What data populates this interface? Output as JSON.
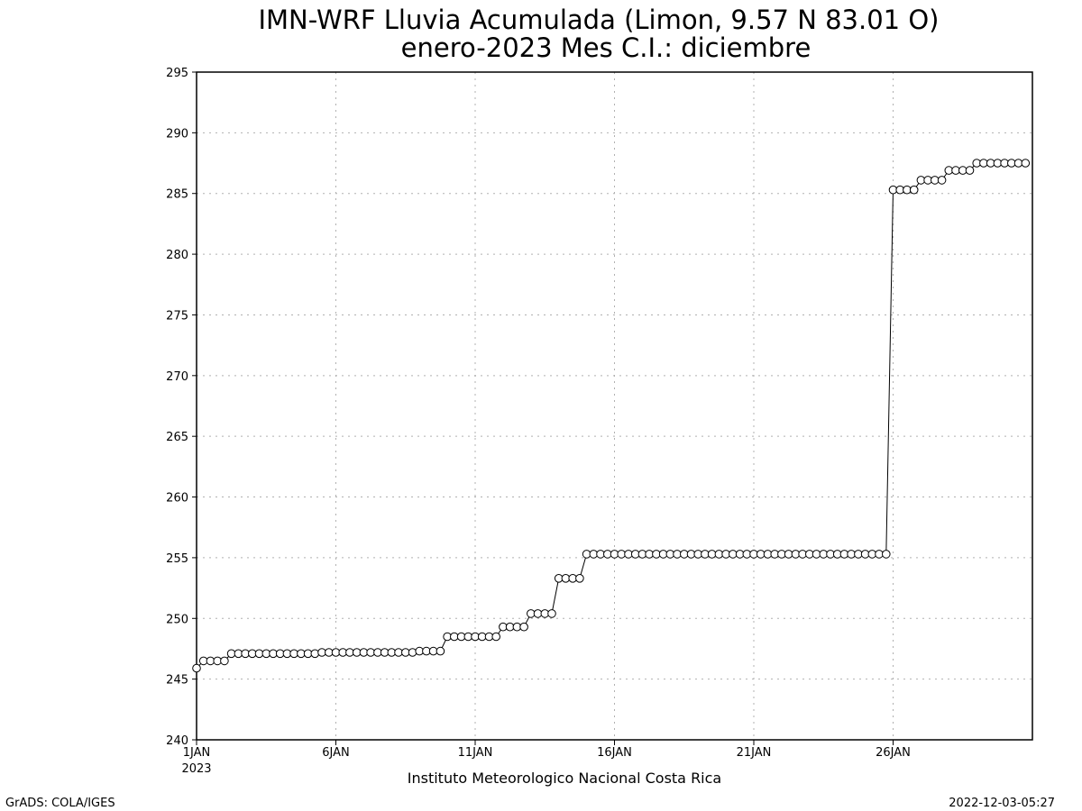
{
  "chart_data": {
    "type": "line",
    "title": "IMN-WRF  Lluvia Acumulada (Limon, 9.57  N 83.01  O)",
    "subtitle": "enero-2023 Mes C.I.: diciembre",
    "xlabel": "Instituto Meteorologico Nacional Costa Rica",
    "ylabel": "",
    "ylim": [
      240,
      295
    ],
    "xlim": [
      "2023-01-01 00:00",
      "2023-01-31 00:00"
    ],
    "yticks": [
      "240",
      "245",
      "250",
      "255",
      "260",
      "265",
      "270",
      "275",
      "280",
      "285",
      "290",
      "295"
    ],
    "xticks": [
      {
        "label": "1JAN",
        "sublabel": "2023"
      },
      {
        "label": "6JAN",
        "sublabel": ""
      },
      {
        "label": "11JAN",
        "sublabel": ""
      },
      {
        "label": "16JAN",
        "sublabel": ""
      },
      {
        "label": "21JAN",
        "sublabel": ""
      },
      {
        "label": "26JAN",
        "sublabel": ""
      }
    ],
    "grid": true,
    "marker": "open-circle",
    "line_color": "#000000",
    "series": [
      {
        "step_hours": 6,
        "values": [
          245.9,
          246.5,
          246.5,
          246.5,
          246.5,
          247.1,
          247.1,
          247.1,
          247.1,
          247.1,
          247.1,
          247.1,
          247.1,
          247.1,
          247.1,
          247.1,
          247.1,
          247.1,
          247.2,
          247.2,
          247.2,
          247.2,
          247.2,
          247.2,
          247.2,
          247.2,
          247.2,
          247.2,
          247.2,
          247.2,
          247.2,
          247.2,
          247.3,
          247.3,
          247.3,
          247.3,
          248.5,
          248.5,
          248.5,
          248.5,
          248.5,
          248.5,
          248.5,
          248.5,
          249.3,
          249.3,
          249.3,
          249.3,
          250.4,
          250.4,
          250.4,
          250.4,
          253.3,
          253.3,
          253.3,
          253.3,
          255.3,
          255.3,
          255.3,
          255.3,
          255.3,
          255.3,
          255.3,
          255.3,
          255.3,
          255.3,
          255.3,
          255.3,
          255.3,
          255.3,
          255.3,
          255.3,
          255.3,
          255.3,
          255.3,
          255.3,
          255.3,
          255.3,
          255.3,
          255.3,
          255.3,
          255.3,
          255.3,
          255.3,
          255.3,
          255.3,
          255.3,
          255.3,
          255.3,
          255.3,
          255.3,
          255.3,
          255.3,
          255.3,
          255.3,
          255.3,
          255.3,
          255.3,
          255.3,
          255.3,
          285.3,
          285.3,
          285.3,
          285.3,
          286.1,
          286.1,
          286.1,
          286.1,
          286.9,
          286.9,
          286.9,
          286.9,
          287.5,
          287.5,
          287.5,
          287.5,
          287.5,
          287.5,
          287.5,
          287.5
        ]
      }
    ]
  },
  "footer": {
    "left": "GrADS: COLA/IGES",
    "right": "2022-12-03-05:27"
  }
}
